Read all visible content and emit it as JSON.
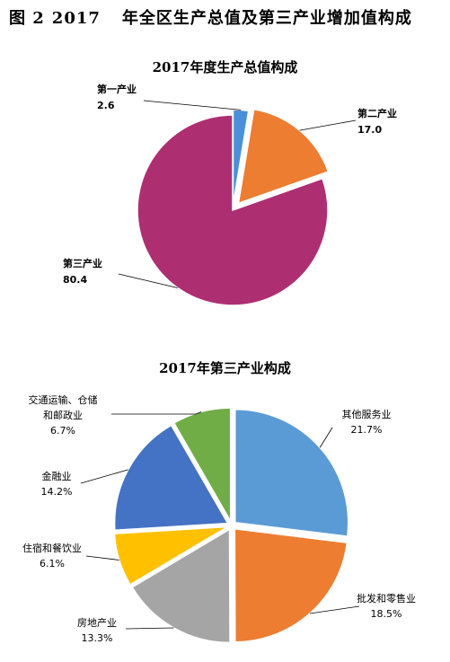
{
  "figure": {
    "label": "图 2",
    "number": "2017",
    "title": "年全区生产总值及第三产业增加值构成"
  },
  "chart_data": [
    {
      "type": "pie",
      "title": "2017年度生产总值构成",
      "categories": [
        "第一产业",
        "第二产业",
        "第三产业"
      ],
      "values": [
        2.6,
        17.0,
        80.4
      ],
      "value_labels": [
        "2.6",
        "17.0",
        "80.4"
      ],
      "colors": [
        "#4a90d9",
        "#ed7d31",
        "#ad2f72"
      ]
    },
    {
      "type": "pie",
      "title": "2017年第三产业构成",
      "categories": [
        "其他服务业",
        "批发和零售业",
        "房地产业",
        "住宿和餐饮业",
        "金融业",
        "交通运输、仓储和邮政业"
      ],
      "values": [
        21.7,
        18.5,
        13.3,
        6.1,
        14.2,
        6.7
      ],
      "value_labels": [
        "21.7%",
        "18.5%",
        "13.3%",
        "6.1%",
        "14.2%",
        "6.7%"
      ],
      "colors": [
        "#5b9bd5",
        "#ed7d31",
        "#a5a5a5",
        "#ffc000",
        "#4472c4",
        "#70ad47"
      ]
    }
  ]
}
